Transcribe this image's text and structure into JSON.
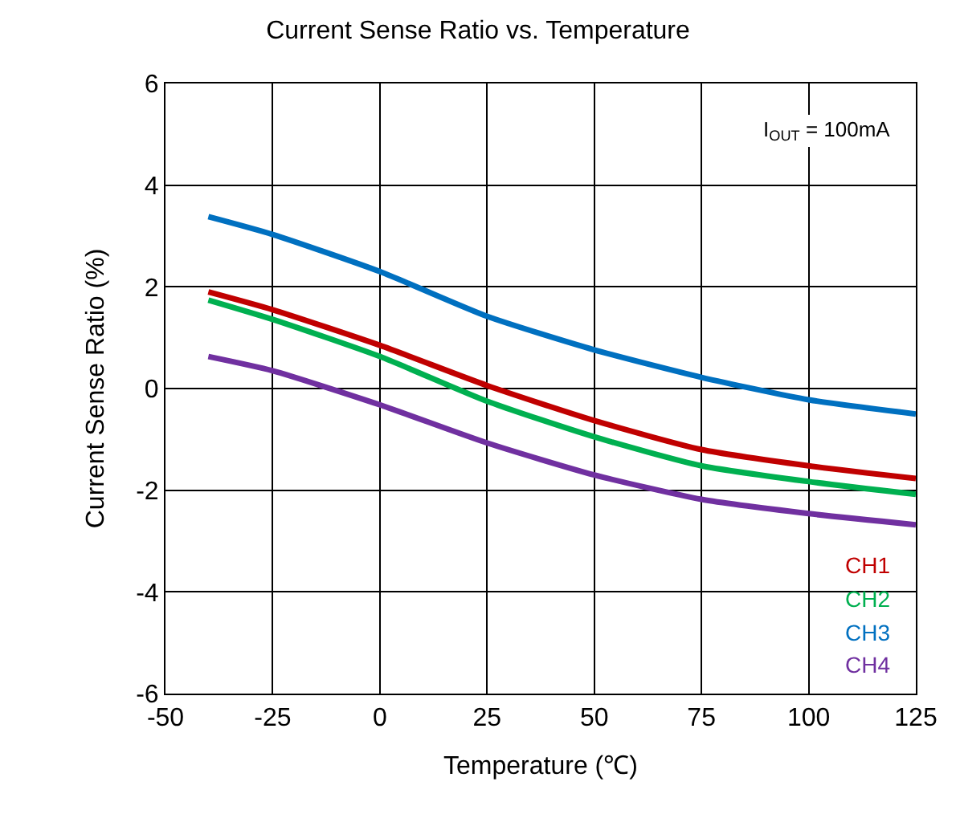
{
  "chart_data": {
    "type": "line",
    "title": "Current Sense Ratio vs. Temperature",
    "xlabel": "Temperature (℃)",
    "ylabel": "Current Sense Ratio (%)",
    "x": [
      -40,
      -25,
      0,
      25,
      50,
      75,
      100,
      125
    ],
    "series": [
      {
        "name": "CH1",
        "color": "#c00000",
        "values": [
          1.9,
          1.55,
          0.85,
          0.06,
          -0.63,
          -1.2,
          -1.52,
          -1.77
        ]
      },
      {
        "name": "CH2",
        "color": "#00b050",
        "values": [
          1.74,
          1.36,
          0.63,
          -0.25,
          -0.95,
          -1.52,
          -1.83,
          -2.08
        ]
      },
      {
        "name": "CH3",
        "color": "#0070c0",
        "values": [
          3.38,
          3.03,
          2.3,
          1.42,
          0.76,
          0.22,
          -0.22,
          -0.5
        ]
      },
      {
        "name": "CH4",
        "color": "#7030a0",
        "values": [
          0.63,
          0.35,
          -0.32,
          -1.07,
          -1.7,
          -2.18,
          -2.46,
          -2.68
        ]
      }
    ],
    "xlim": [
      -50,
      125
    ],
    "xticks": [
      -50,
      -25,
      0,
      25,
      50,
      75,
      100,
      125
    ],
    "ylim": [
      -6,
      6
    ],
    "yticks": [
      -6,
      -4,
      -2,
      0,
      2,
      4,
      6
    ],
    "grid": true,
    "legend": "bottom right",
    "marker": "none",
    "line_style": "solid",
    "annotations": [
      "I$_{OUT}$ = 100mA"
    ]
  }
}
